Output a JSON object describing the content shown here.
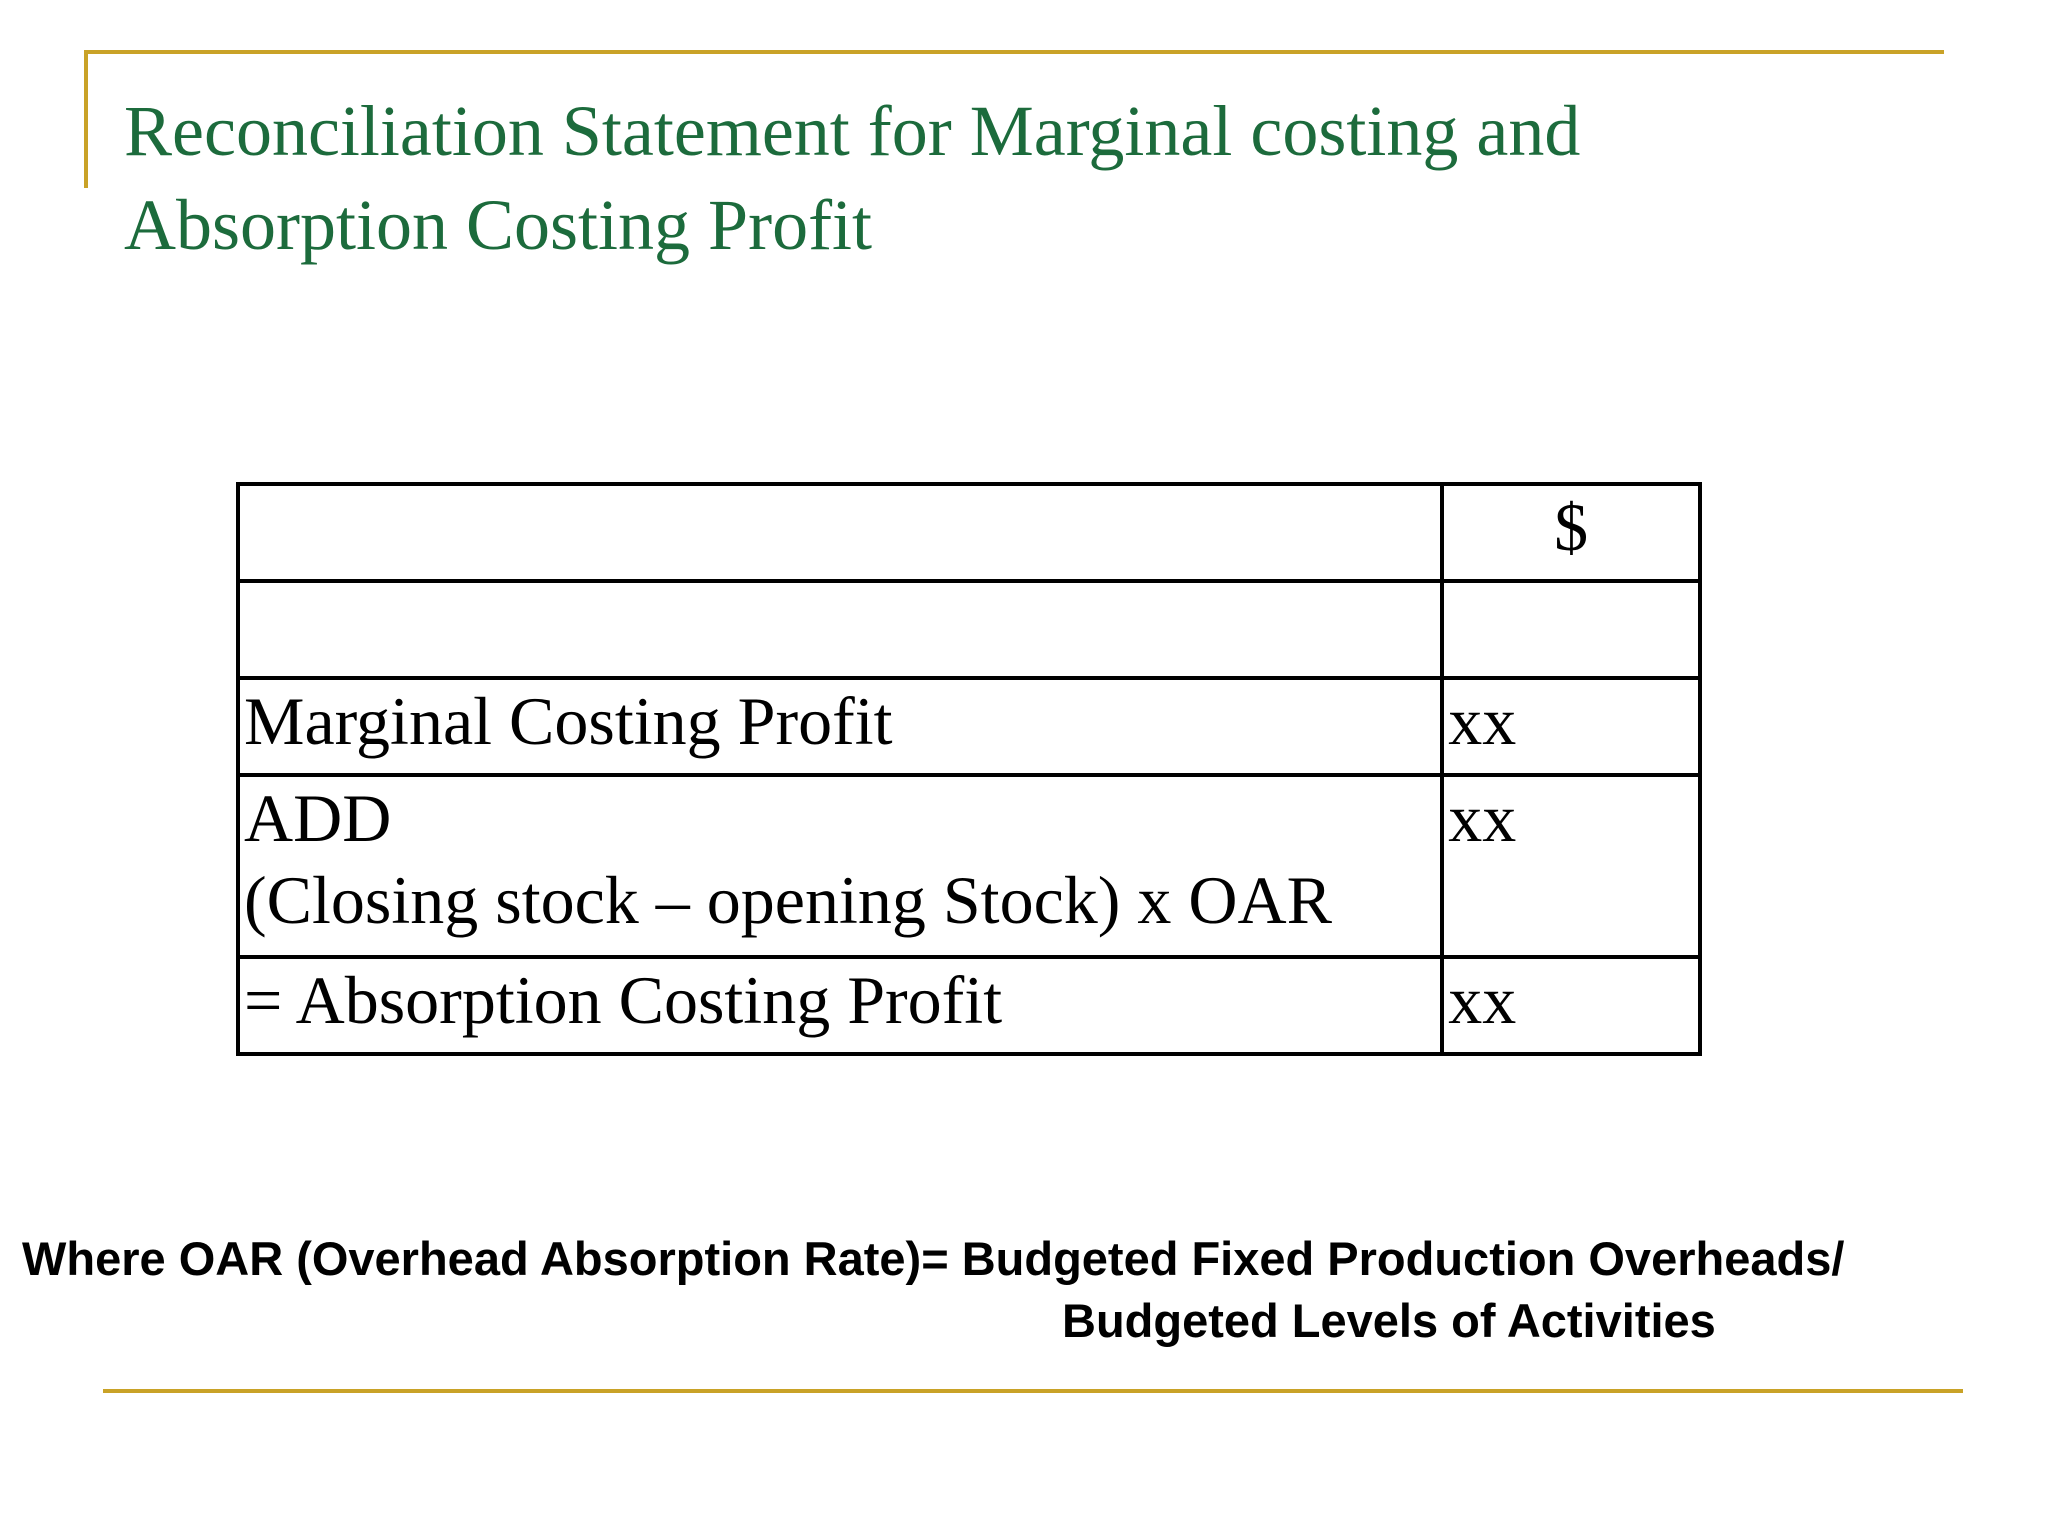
{
  "slide": {
    "title_line1": "Reconciliation Statement for Marginal costing and",
    "title_line2": "Absorption Costing Profit",
    "accent_color": "#c9a227",
    "title_color": "#1c6b3c"
  },
  "table": {
    "header_amount": "$",
    "rows": [
      {
        "label": "Marginal Costing Profit",
        "label_line2": "",
        "amount": "xx"
      },
      {
        "label": "ADD",
        "label_line2": "(Closing stock – opening Stock) x OAR",
        "amount": "xx"
      },
      {
        "label": "= Absorption Costing Profit",
        "label_line2": "",
        "amount": "xx"
      }
    ]
  },
  "note": {
    "line1": "Where OAR (Overhead Absorption Rate)= Budgeted Fixed Production Overheads/",
    "line2": "Budgeted Levels of Activities"
  }
}
